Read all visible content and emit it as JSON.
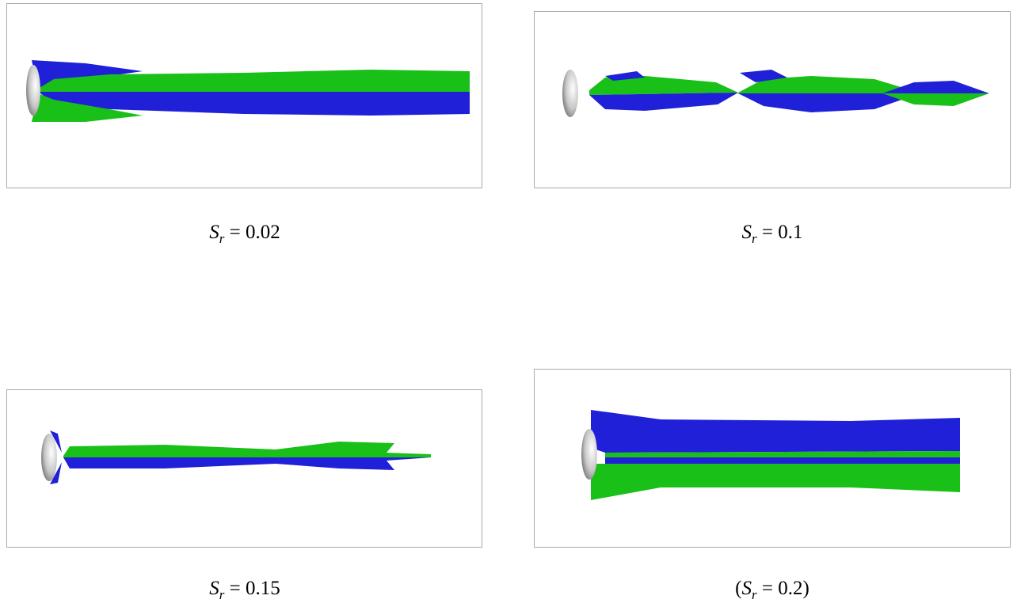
{
  "figure": {
    "panels": [
      {
        "caption": {
          "symbol": "S",
          "subscript": "r",
          "after": " = 0.02"
        }
      },
      {
        "caption": {
          "symbol": "S",
          "subscript": "r",
          "after": " = 0.1"
        }
      },
      {
        "caption": {
          "symbol": "S",
          "subscript": "r",
          "after": " = 0.15"
        }
      },
      {
        "caption": {
          "before": "(",
          "symbol": "S",
          "subscript": "r",
          "after": " = 0.2)"
        }
      }
    ]
  }
}
